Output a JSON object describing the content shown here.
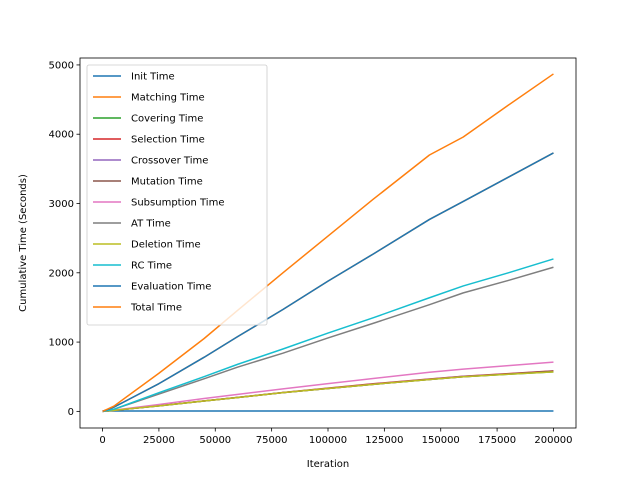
{
  "chart_data": {
    "type": "line",
    "title": "",
    "xlabel": "Iteration",
    "ylabel": "Cumulative Time (Seconds)",
    "xlim": [
      -10000,
      210000
    ],
    "ylim": [
      -240,
      5100
    ],
    "xticks": [
      0,
      25000,
      50000,
      75000,
      100000,
      125000,
      150000,
      175000,
      200000
    ],
    "yticks": [
      0,
      1000,
      2000,
      3000,
      4000,
      5000
    ],
    "legend_position": "top-left",
    "grid": false,
    "x": [
      0,
      5000,
      25000,
      45000,
      60000,
      80000,
      100000,
      120000,
      145000,
      160000,
      180000,
      200000
    ],
    "series": [
      {
        "name": "Init Time",
        "color": "#1f77b4",
        "values": [
          5,
          5,
          5,
          5,
          5,
          5,
          5,
          5,
          5,
          5,
          5,
          5
        ]
      },
      {
        "name": "Matching Time",
        "color": "#ff7f0e",
        "values": [
          0,
          60,
          400,
          780,
          1080,
          1470,
          1880,
          2270,
          2770,
          3030,
          3380,
          3730
        ]
      },
      {
        "name": "Covering Time",
        "color": "#2ca02c",
        "values": [
          0,
          15,
          80,
          150,
          200,
          270,
          330,
          390,
          460,
          500,
          535,
          570
        ]
      },
      {
        "name": "Selection Time",
        "color": "#d62728",
        "values": [
          0,
          15,
          82,
          152,
          203,
          273,
          335,
          398,
          467,
          507,
          545,
          585
        ]
      },
      {
        "name": "Crossover Time",
        "color": "#9467bd",
        "values": [
          0,
          15,
          82,
          150,
          202,
          270,
          332,
          393,
          463,
          505,
          540,
          580
        ]
      },
      {
        "name": "Mutation Time",
        "color": "#8c564b",
        "values": [
          0,
          15,
          80,
          150,
          200,
          270,
          330,
          390,
          460,
          500,
          540,
          580
        ]
      },
      {
        "name": "Subsumption Time",
        "color": "#e377c2",
        "values": [
          0,
          18,
          100,
          185,
          245,
          325,
          400,
          475,
          565,
          610,
          660,
          710
        ]
      },
      {
        "name": "AT Time",
        "color": "#7f7f7f",
        "values": [
          0,
          30,
          250,
          470,
          640,
          840,
          1060,
          1270,
          1540,
          1710,
          1890,
          2080
        ]
      },
      {
        "name": "Deletion Time",
        "color": "#bcbd22",
        "values": [
          0,
          15,
          80,
          150,
          200,
          270,
          330,
          390,
          460,
          500,
          535,
          570
        ]
      },
      {
        "name": "RC Time",
        "color": "#17becf",
        "values": [
          0,
          30,
          270,
          500,
          680,
          900,
          1130,
          1350,
          1640,
          1810,
          2000,
          2200
        ]
      },
      {
        "name": "Evaluation Time",
        "color": "#1f77b4",
        "values": [
          0,
          60,
          400,
          780,
          1080,
          1470,
          1880,
          2270,
          2770,
          3030,
          3380,
          3730
        ]
      },
      {
        "name": "Total Time",
        "color": "#ff7f0e",
        "values": [
          0,
          75,
          550,
          1050,
          1460,
          2000,
          2530,
          3060,
          3700,
          3960,
          4420,
          4870
        ]
      }
    ]
  }
}
